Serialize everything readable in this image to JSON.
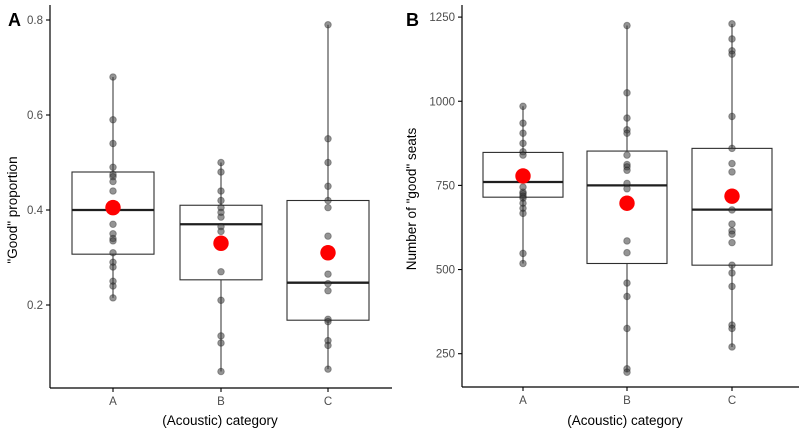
{
  "style": {
    "background": "#ffffff",
    "mean_point_color": "#fe0000",
    "data_point_color": "#3c3c3c",
    "data_point_opacity": 0.55,
    "box_stroke_color": "#2e2e2e",
    "median_color": "#1f1f1f",
    "axis_line_color": "#000000",
    "tick_label_color": "#4d4d4d",
    "axis_title_color": "#000000"
  },
  "chart_data": [
    {
      "type": "boxplot",
      "panel_letter": "A",
      "xlabel": "(Acoustic) category",
      "ylabel": "\"Good\" proportion",
      "categories": [
        "A",
        "B",
        "C"
      ],
      "yticks": [
        0.2,
        0.4,
        0.6,
        0.8
      ],
      "ytick_labels": [
        "0.2",
        "0.4",
        "0.6",
        "0.8"
      ],
      "ylim": [
        0.04,
        0.82
      ],
      "grid": false,
      "legend": "none",
      "series": [
        {
          "category": "A",
          "q1": 0.307,
          "median": 0.4,
          "q3": 0.48,
          "whisker_low": 0.215,
          "whisker_high": 0.68,
          "mean": 0.405,
          "points": [
            0.68,
            0.59,
            0.54,
            0.49,
            0.475,
            0.47,
            0.46,
            0.44,
            0.41,
            0.37,
            0.35,
            0.34,
            0.335,
            0.31,
            0.29,
            0.28,
            0.25,
            0.24,
            0.215
          ]
        },
        {
          "category": "B",
          "q1": 0.253,
          "median": 0.37,
          "q3": 0.41,
          "whisker_low": 0.06,
          "whisker_high": 0.5,
          "mean": 0.33,
          "points": [
            0.5,
            0.48,
            0.44,
            0.42,
            0.405,
            0.395,
            0.385,
            0.365,
            0.355,
            0.27,
            0.21,
            0.135,
            0.12,
            0.06
          ]
        },
        {
          "category": "C",
          "q1": 0.168,
          "median": 0.247,
          "q3": 0.42,
          "whisker_low": 0.065,
          "whisker_high": 0.79,
          "mean": 0.31,
          "points": [
            0.79,
            0.55,
            0.5,
            0.45,
            0.42,
            0.405,
            0.345,
            0.265,
            0.245,
            0.23,
            0.17,
            0.165,
            0.125,
            0.115,
            0.065
          ]
        }
      ]
    },
    {
      "type": "boxplot",
      "panel_letter": "B",
      "xlabel": "(Acoustic) category",
      "ylabel": "Number of \"good\" seats",
      "categories": [
        "A",
        "B",
        "C"
      ],
      "yticks": [
        250,
        500,
        750,
        1000,
        1250
      ],
      "ytick_labels": [
        "250",
        "500",
        "750",
        "1000",
        "1250"
      ],
      "ylim": [
        150,
        1280
      ],
      "grid": false,
      "legend": "none",
      "series": [
        {
          "category": "A",
          "q1": 715,
          "median": 760,
          "q3": 848,
          "whisker_low": 518,
          "whisker_high": 985,
          "mean": 778,
          "points": [
            985,
            935,
            905,
            875,
            850,
            840,
            745,
            730,
            725,
            718,
            712,
            697,
            682,
            667,
            548,
            518
          ]
        },
        {
          "category": "B",
          "q1": 518,
          "median": 750,
          "q3": 852,
          "whisker_low": 195,
          "whisker_high": 1225,
          "mean": 697,
          "points": [
            1225,
            1025,
            950,
            915,
            905,
            840,
            812,
            805,
            795,
            756,
            740,
            585,
            550,
            460,
            420,
            325,
            205,
            195
          ]
        },
        {
          "category": "C",
          "q1": 513,
          "median": 678,
          "q3": 860,
          "whisker_low": 270,
          "whisker_high": 1230,
          "mean": 718,
          "points": [
            1230,
            1185,
            1150,
            1140,
            955,
            860,
            815,
            790,
            677,
            635,
            615,
            605,
            580,
            513,
            490,
            450,
            335,
            325,
            270
          ]
        }
      ]
    }
  ]
}
